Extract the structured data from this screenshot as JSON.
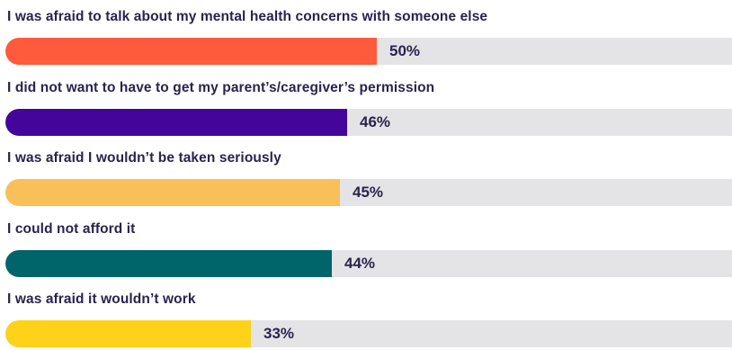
{
  "chart_data": {
    "type": "bar",
    "orientation": "horizontal",
    "categories": [
      "I was afraid to talk about my mental health concerns with someone else",
      "I did not want to have to get my parent’s/caregiver’s permission",
      "I was afraid I wouldn’t be taken seriously",
      "I could not afford it",
      "I was afraid it wouldn’t work"
    ],
    "values": [
      50,
      46,
      45,
      44,
      33
    ],
    "value_labels": [
      "50%",
      "46%",
      "45%",
      "44%",
      "33%"
    ],
    "colors": [
      "#ff5a3c",
      "#44069a",
      "#f9bf59",
      "#00656a",
      "#ffd21a"
    ],
    "track_color": "#e4e4e6",
    "text_color": "#2a2350",
    "xlim": [
      0,
      100
    ],
    "title": "",
    "xlabel": "",
    "ylabel": "",
    "grid": false,
    "legend": false
  }
}
